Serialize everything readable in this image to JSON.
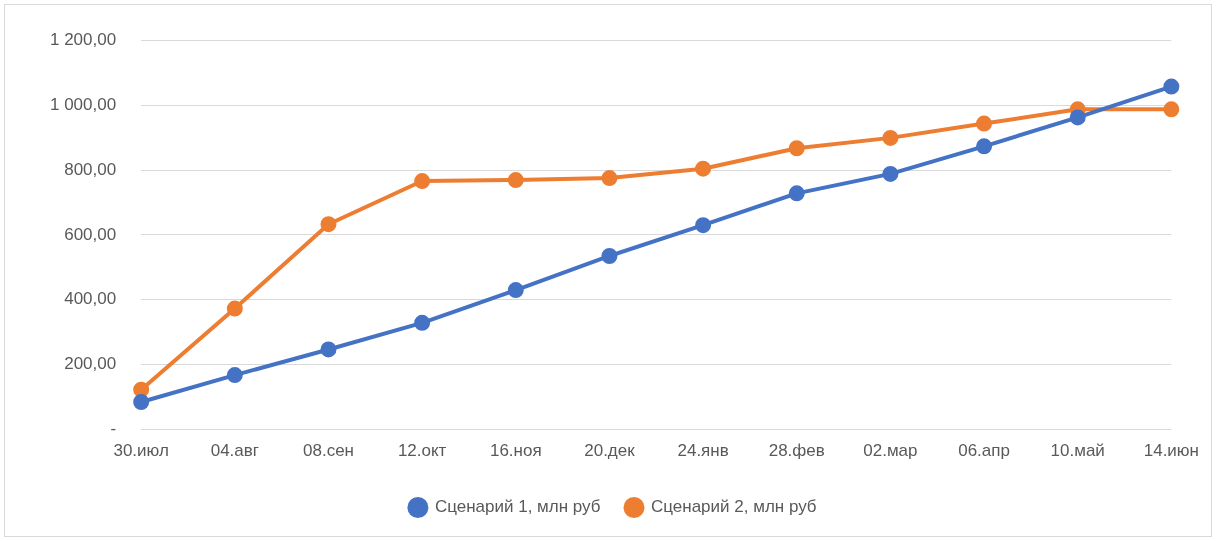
{
  "chart_data": {
    "type": "line",
    "categories": [
      "30.июл",
      "04.авг",
      "08.сен",
      "12.окт",
      "16.ноя",
      "20.дек",
      "24.янв",
      "28.фев",
      "02.мар",
      "06.апр",
      "10.май",
      "14.июн"
    ],
    "series": [
      {
        "name": "Сценарий 1, млн руб",
        "color": "#4472c4",
        "values": [
          85,
          168,
          247,
          329,
          430,
          535,
          630,
          728,
          788,
          873,
          962,
          1057
        ]
      },
      {
        "name": "Сценарий 2, млн руб",
        "color": "#ed7d31",
        "values": [
          123,
          373,
          633,
          766,
          769,
          775,
          804,
          867,
          899,
          943,
          987,
          987
        ]
      }
    ],
    "ylim": [
      0,
      1200
    ],
    "yticks": [
      {
        "value": 0,
        "label": "-"
      },
      {
        "value": 200,
        "label": "200,00"
      },
      {
        "value": 400,
        "label": "400,00"
      },
      {
        "value": 600,
        "label": "600,00"
      },
      {
        "value": 800,
        "label": "800,00"
      },
      {
        "value": 1000,
        "label": "1 000,00"
      },
      {
        "value": 1200,
        "label": "1 200,00"
      }
    ],
    "grid": "y",
    "legend": "bottom",
    "marker": "circle",
    "line_style": "solid"
  }
}
